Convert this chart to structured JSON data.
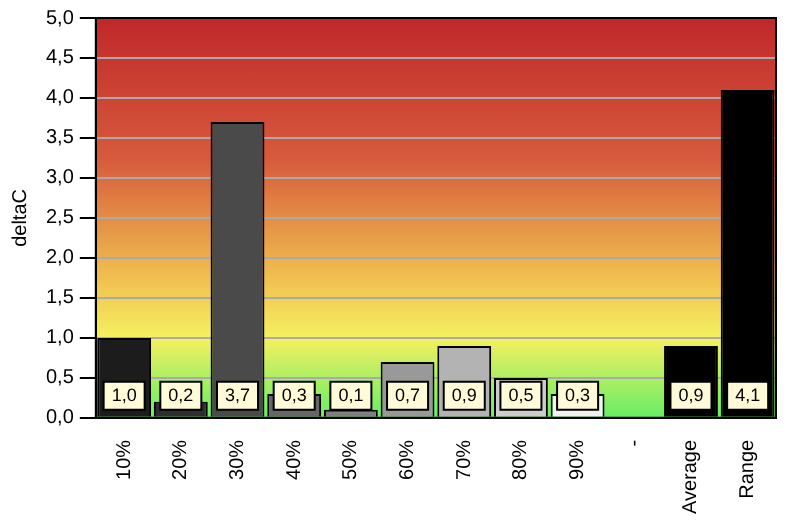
{
  "chart_data": {
    "type": "bar",
    "ylabel": "deltaC",
    "categories": [
      "10%",
      "20%",
      "30%",
      "40%",
      "50%",
      "60%",
      "70%",
      "80%",
      "90%",
      "-",
      "Average",
      "Range"
    ],
    "values": [
      1.0,
      0.2,
      3.7,
      0.3,
      0.1,
      0.7,
      0.9,
      0.5,
      0.3,
      null,
      0.9,
      4.1
    ],
    "colors": [
      "#1c1c1c",
      "#2e2e2e",
      "#4a4a4a",
      "#666666",
      "#808080",
      "#999999",
      "#b3b3b3",
      "#cccccc",
      "#f2f2f2",
      "#ffffff",
      "#000000",
      "#000000"
    ],
    "value_labels": [
      "1,0",
      "0,2",
      "3,7",
      "0,3",
      "0,1",
      "0,7",
      "0,9",
      "0,5",
      "0,3",
      null,
      "0,9",
      "4,1"
    ],
    "ylim": [
      0,
      5
    ],
    "yticks": [
      {
        "value": 0,
        "label": "0,0"
      },
      {
        "value": 0.5,
        "label": "0,5"
      },
      {
        "value": 1,
        "label": "1,0"
      },
      {
        "value": 1.5,
        "label": "1,5"
      },
      {
        "value": 2,
        "label": "2,0"
      },
      {
        "value": 2.5,
        "label": "2,5"
      },
      {
        "value": 3,
        "label": "3,0"
      },
      {
        "value": 3.5,
        "label": "3,5"
      },
      {
        "value": 4,
        "label": "4,0"
      },
      {
        "value": 4.5,
        "label": "4,5"
      },
      {
        "value": 5,
        "label": "5,0"
      }
    ],
    "grid": "y"
  }
}
